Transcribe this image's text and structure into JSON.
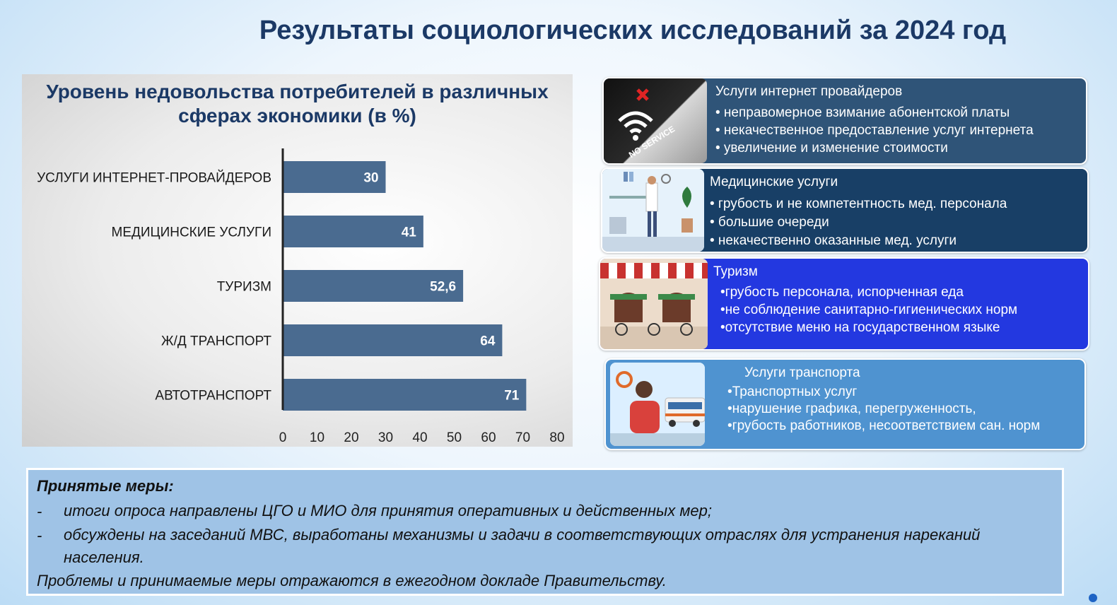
{
  "page": {
    "title": "Результаты социологических исследований за 2024 год"
  },
  "chart_data": {
    "type": "bar",
    "orientation": "horizontal",
    "title": "Уровень недовольства потребителей в различных сферах экономики (в %)",
    "categories": [
      "УСЛУГИ ИНТЕРНЕТ-ПРОВАЙДЕРОВ",
      "МЕДИЦИНСКИЕ УСЛУГИ",
      "ТУРИЗМ",
      "Ж/Д ТРАНСПОРТ",
      "АВТОТРАНСПОРТ"
    ],
    "values": [
      30,
      41,
      52.6,
      64,
      71
    ],
    "value_labels": [
      "30",
      "41",
      "52,6",
      "64",
      "71"
    ],
    "xlim": [
      0,
      80
    ],
    "xticks": [
      0,
      10,
      20,
      30,
      40,
      50,
      60,
      70,
      80
    ],
    "bar_color": "#4a6b90",
    "grid": false
  },
  "cards": [
    {
      "image_icon": "no-service-phone-icon",
      "heading": "Услуги интернет провайдеров",
      "items": [
        "• неправомерное взимание абонентской платы",
        "• некачественное предоставление услуг интернета",
        "• увеличение и изменение стоимости"
      ],
      "color": "#2f5478"
    },
    {
      "image_icon": "doctor-office-icon",
      "heading": "Медицинские услуги",
      "items": [
        "• грубость и не компетентность мед. персонала",
        "• большие очереди",
        "• некачественно оказанные мед. услуги"
      ],
      "color": "#183f66"
    },
    {
      "image_icon": "cafe-storefront-icon",
      "heading": "Туризм",
      "items": [
        "•грубость персонала, испорченная еда",
        "•не соблюдение санитарно-гигиенических норм",
        "•отсутствие меню на государственном языке"
      ],
      "color": "#2338e0"
    },
    {
      "image_icon": "bus-passenger-icon",
      "heading": "Услуги транспорта",
      "items": [
        "•Транспортных услуг",
        "•нарушение графика, перегруженность,",
        "•грубость работников, несоответствием сан. норм"
      ],
      "color": "#4f93d0"
    }
  ],
  "measures": {
    "heading": "Принятые меры:",
    "items": [
      {
        "dash": "-",
        "text": "итоги опроса направлены ЦГО и МИО для принятия оперативных и действенных мер;"
      },
      {
        "dash": "-",
        "text": "обсуждены на заседаний МВС, выработаны механизмы и задачи в соответствующих отраслях для устранения нареканий населения."
      }
    ],
    "footer": "Проблемы и принимаемые меры отражаются в ежегодном докладе Правительству."
  }
}
